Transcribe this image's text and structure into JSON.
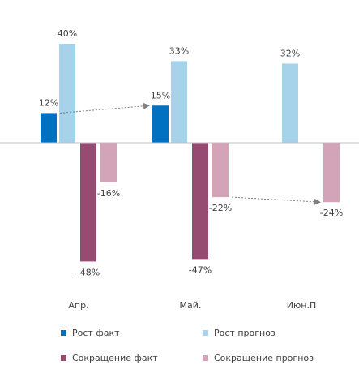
{
  "chart_data": {
    "type": "bar",
    "categories": [
      "Апр.",
      "Май.",
      "Июн.П"
    ],
    "series": [
      {
        "name": "Рост факт",
        "color": "#0070C0",
        "values": [
          12,
          15,
          null
        ]
      },
      {
        "name": "Рост прогноз",
        "color": "#A6D2EA",
        "values": [
          40,
          33,
          32
        ]
      },
      {
        "name": "Сокращение факт",
        "color": "#964C72",
        "values": [
          -48,
          -47,
          null
        ]
      },
      {
        "name": "Сокращение прогноз",
        "color": "#D3A3B8",
        "values": [
          -16,
          -22,
          -24
        ]
      }
    ],
    "data_labels": [
      [
        "12%",
        "40%",
        "-48%",
        "-16%"
      ],
      [
        "15%",
        "33%",
        "-47%",
        "-22%"
      ],
      [
        "",
        "32%",
        "",
        "-24%"
      ]
    ],
    "ylim": [
      -60,
      45
    ],
    "grid": false,
    "legend_position": "bottom",
    "annotations": [
      {
        "type": "dashed-arrow",
        "from": {
          "category": "Апр.",
          "series": "Рост факт"
        },
        "to": {
          "category": "Май.",
          "series": "Рост факт"
        }
      },
      {
        "type": "dashed-arrow",
        "from": {
          "category": "Май.",
          "series": "Сокращение прогноз"
        },
        "to": {
          "category": "Июн.П",
          "series": "Сокращение прогноз"
        }
      }
    ]
  }
}
